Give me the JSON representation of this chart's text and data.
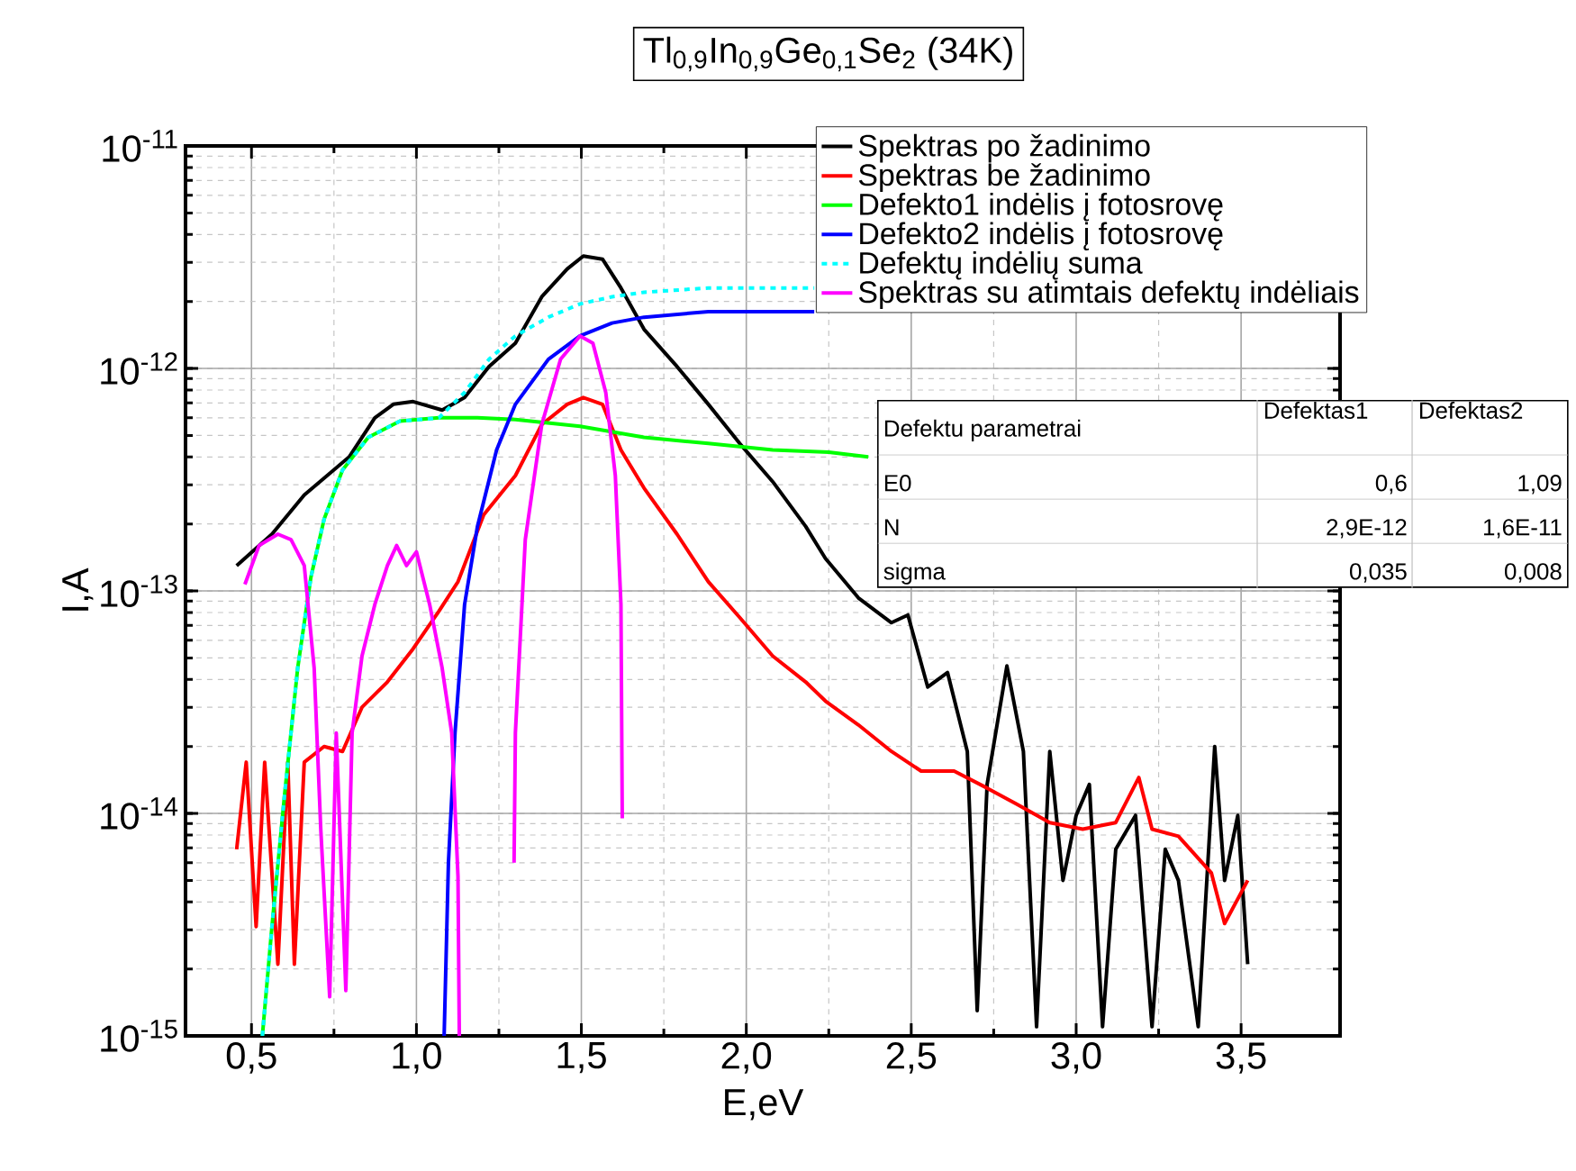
{
  "chart_data": {
    "type": "line",
    "title": "Tl$_{0,9}$In$_{0,9}$Ge$_{0,1}$Se$_{2}$ (34K)",
    "xlabel": "E,eV",
    "ylabel": "I,A",
    "log": "y",
    "grid": true,
    "legend": "top right",
    "xlim": [
      0.3,
      3.8
    ],
    "ylim": [
      1e-15,
      1e-11
    ],
    "xticks": [
      {
        "value": 0.5,
        "label": "0,5"
      },
      {
        "value": 1.0,
        "label": "1,0"
      },
      {
        "value": 1.5,
        "label": "1,5"
      },
      {
        "value": 2.0,
        "label": "2,0"
      },
      {
        "value": 2.5,
        "label": "2,5"
      },
      {
        "value": 3.0,
        "label": "3,0"
      },
      {
        "value": 3.5,
        "label": "3,5"
      }
    ],
    "yticks": [
      {
        "value": 1e-15,
        "label": "10$^{-15}$"
      },
      {
        "value": 1e-14,
        "label": "10$^{-14}$"
      },
      {
        "value": 1e-13,
        "label": "10$^{-13}$"
      },
      {
        "value": 1e-12,
        "label": "10$^{-12}$"
      },
      {
        "value": 1e-11,
        "label": "10$^{-11}$"
      }
    ],
    "series": [
      {
        "name": "Spektras po žadinimo",
        "color": "#000000",
        "x": [
          0.455,
          0.562,
          0.66,
          0.796,
          0.874,
          0.93,
          0.99,
          1.078,
          1.146,
          1.22,
          1.3,
          1.38,
          1.457,
          1.506,
          1.564,
          1.62,
          1.69,
          1.79,
          1.885,
          1.98,
          2.08,
          2.18,
          2.24,
          2.34,
          2.44,
          2.49,
          2.55,
          2.61,
          2.67,
          2.7,
          2.73,
          2.79,
          2.84,
          2.88,
          2.92,
          2.96,
          3.0,
          3.04,
          3.08,
          3.12,
          3.18,
          3.23,
          3.27,
          3.31,
          3.37,
          3.42,
          3.45,
          3.49,
          3.52
        ],
        "values": [
          1.3e-13,
          1.8e-13,
          2.7e-13,
          4e-13,
          6e-13,
          6.9e-13,
          7.1e-13,
          6.5e-13,
          7.4e-13,
          1.02e-12,
          1.3e-12,
          2.1e-12,
          2.8e-12,
          3.2e-12,
          3.1e-12,
          2.3e-12,
          1.5e-12,
          1.02e-12,
          6.9e-13,
          4.6e-13,
          3.1e-13,
          1.95e-13,
          1.4e-13,
          9.3e-14,
          7.2e-14,
          7.8e-14,
          3.7e-14,
          4.3e-14,
          1.9e-14,
          1.3e-15,
          1.35e-14,
          4.6e-14,
          1.9e-14,
          1.1e-15,
          1.9e-14,
          5e-15,
          9.8e-15,
          1.35e-14,
          1.1e-15,
          6.9e-15,
          9.8e-15,
          1.1e-15,
          6.9e-15,
          5e-15,
          1.1e-15,
          2e-14,
          5e-15,
          9.8e-15,
          2.1e-15
        ]
      },
      {
        "name": "Spektras be žadinimo",
        "color": "#ff0000",
        "x": [
          0.455,
          0.484,
          0.514,
          0.54,
          0.58,
          0.61,
          0.63,
          0.66,
          0.72,
          0.776,
          0.835,
          0.912,
          0.99,
          1.068,
          1.126,
          1.204,
          1.3,
          1.38,
          1.457,
          1.506,
          1.564,
          1.62,
          1.69,
          1.79,
          1.885,
          1.98,
          2.08,
          2.18,
          2.24,
          2.34,
          2.44,
          2.53,
          2.63,
          2.73,
          2.82,
          2.92,
          3.02,
          3.12,
          3.19,
          3.23,
          3.31,
          3.41,
          3.45,
          3.52
        ],
        "values": [
          6.9e-15,
          1.7e-14,
          3.1e-15,
          1.7e-14,
          2.1e-15,
          1.7e-14,
          2.1e-15,
          1.7e-14,
          2e-14,
          1.9e-14,
          3e-14,
          3.9e-14,
          5.5e-14,
          8.1e-14,
          1.1e-13,
          2.2e-13,
          3.3e-13,
          5.6e-13,
          6.9e-13,
          7.4e-13,
          6.9e-13,
          4.3e-13,
          2.9e-13,
          1.8e-13,
          1.1e-13,
          7.6e-14,
          5.1e-14,
          3.9e-14,
          3.2e-14,
          2.5e-14,
          1.9e-14,
          1.55e-14,
          1.55e-14,
          1.3e-14,
          1.1e-14,
          9.1e-15,
          8.5e-15,
          9.1e-15,
          1.45e-14,
          8.5e-15,
          7.9e-15,
          5.4e-15,
          3.2e-15,
          5e-15
        ]
      },
      {
        "name": "Defekto1 indėlis į fotosrovę",
        "color": "#00ff00",
        "x": [
          0.533,
          0.562,
          0.6,
          0.64,
          0.68,
          0.72,
          0.776,
          0.854,
          0.95,
          1.068,
          1.185,
          1.3,
          1.496,
          1.69,
          1.885,
          2.08,
          2.25,
          2.37
        ],
        "values": [
          1e-15,
          3.1e-15,
          1.2e-14,
          4.5e-14,
          1.15e-13,
          2.1e-13,
          3.5e-13,
          4.9e-13,
          5.8e-13,
          6e-13,
          6e-13,
          5.9e-13,
          5.5e-13,
          4.9e-13,
          4.6e-13,
          4.3e-13,
          4.2e-13,
          4e-13
        ]
      },
      {
        "name": "Defekto2 indėlis į fotosrovę",
        "color": "#0000ff",
        "x": [
          1.084,
          1.097,
          1.117,
          1.146,
          1.185,
          1.243,
          1.3,
          1.4,
          1.496,
          1.593,
          1.69,
          1.885,
          2.08,
          2.206
        ],
        "values": [
          1e-15,
          6e-15,
          2.3e-14,
          8.7e-14,
          1.95e-13,
          4.3e-13,
          6.9e-13,
          1.1e-12,
          1.4e-12,
          1.6e-12,
          1.7e-12,
          1.8e-12,
          1.8e-12,
          1.8e-12
        ]
      },
      {
        "name": "Defektų indėlių suma",
        "color": "#00ffff",
        "line_style": "dashed",
        "x": [
          0.533,
          0.562,
          0.6,
          0.64,
          0.68,
          0.72,
          0.776,
          0.854,
          0.95,
          1.068,
          1.146,
          1.22,
          1.3,
          1.4,
          1.496,
          1.593,
          1.69,
          1.885,
          2.08,
          2.206
        ],
        "values": [
          1e-15,
          3.1e-15,
          1.2e-14,
          4.5e-14,
          1.15e-13,
          2.1e-13,
          3.5e-13,
          4.9e-13,
          5.8e-13,
          6e-13,
          7.8e-13,
          1.1e-12,
          1.4e-12,
          1.7e-12,
          1.95e-12,
          2.1e-12,
          2.2e-12,
          2.3e-12,
          2.3e-12,
          2.3e-12
        ]
      },
      {
        "name": "Spektras su atimtais defektų indėliais",
        "color": "#ff00ff",
        "x": [
          0.48,
          0.523,
          0.58,
          0.62,
          0.66,
          0.69,
          0.71,
          0.737,
          0.757,
          0.786,
          0.805,
          0.835,
          0.874,
          0.912,
          0.94,
          0.97,
          1.0,
          1.04,
          1.078,
          1.107,
          1.126,
          1.13,
          1.2,
          1.296,
          1.3,
          1.33,
          1.38,
          1.437,
          1.496,
          1.535,
          1.574,
          1.603,
          1.62,
          1.624
        ],
        "values": [
          1.07e-13,
          1.6e-13,
          1.8e-13,
          1.7e-13,
          1.3e-13,
          4.5e-14,
          8.5e-15,
          1.5e-15,
          2.3e-14,
          1.6e-15,
          2.3e-14,
          5.1e-14,
          8.7e-14,
          1.3e-13,
          1.6e-13,
          1.3e-13,
          1.5e-13,
          8.7e-14,
          4.5e-14,
          2.3e-14,
          5.2e-15,
          1e-15,
          null,
          6e-15,
          2.3e-14,
          1.7e-13,
          5.6e-13,
          1.1e-12,
          1.4e-12,
          1.3e-12,
          7.8e-13,
          3.3e-13,
          8.7e-14,
          9.5e-15
        ]
      }
    ],
    "annotations": [
      "Defektu parametrai",
      "Defektas1",
      "Defektas2",
      "E0",
      "0,6",
      "1,09",
      "N",
      "2,9E-12",
      "1,6E-11",
      "sigma",
      "0,035",
      "0,008"
    ]
  }
}
